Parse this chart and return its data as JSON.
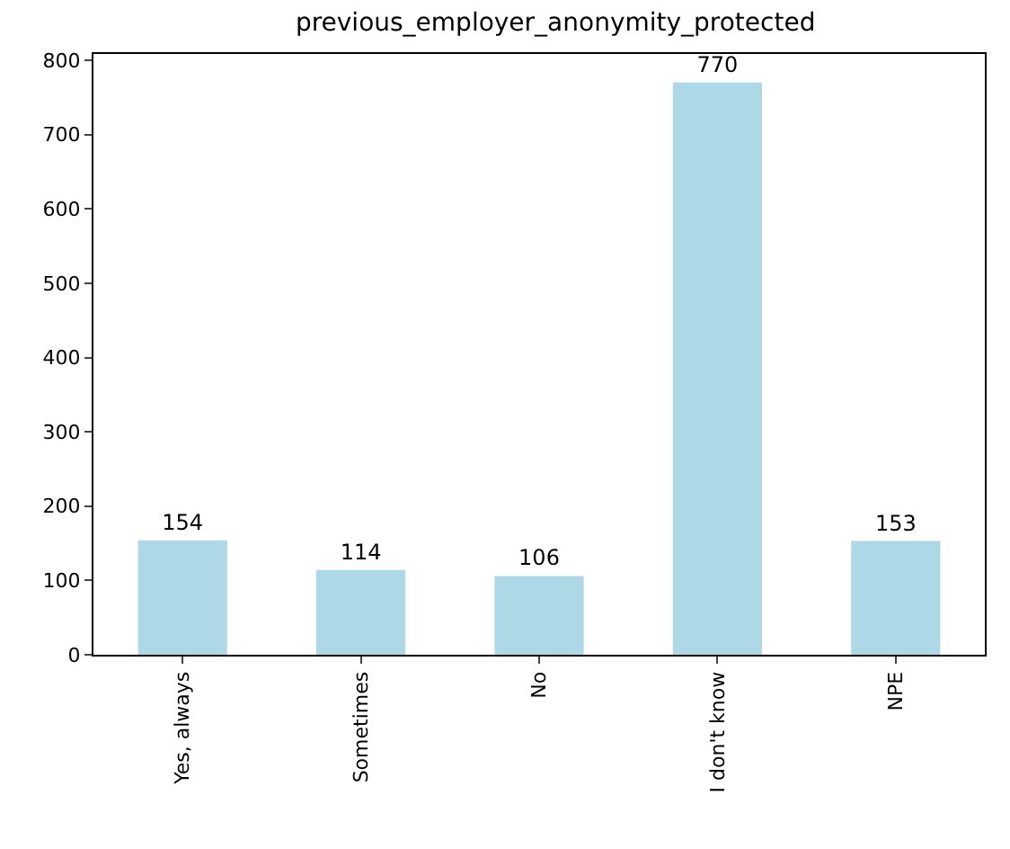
{
  "chart_data": {
    "type": "bar",
    "title": "previous_employer_anonymity_protected",
    "categories": [
      "Yes, always",
      "Sometimes",
      "No",
      "I don't know",
      "NPE"
    ],
    "values": [
      154,
      114,
      106,
      770,
      153
    ],
    "color": "#add8e6",
    "ylim": [
      0,
      808.5
    ],
    "yticks": [
      0,
      100,
      200,
      300,
      400,
      500,
      600,
      700,
      800
    ],
    "data_labels": true
  }
}
